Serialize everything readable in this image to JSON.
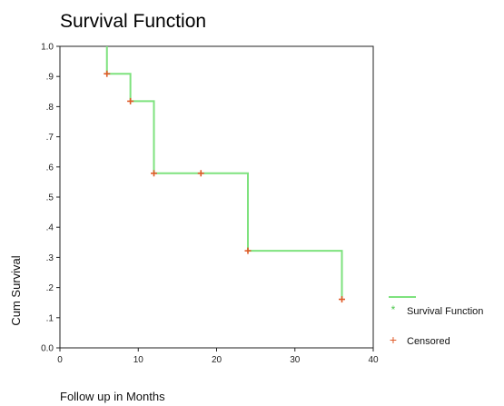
{
  "chart_data": {
    "type": "line",
    "title": "Survival Function",
    "xlabel": "Follow up in Months",
    "ylabel": "Cum Survival",
    "xlim": [
      0,
      40
    ],
    "ylim": [
      0.0,
      1.0
    ],
    "x_ticks": [
      "0",
      "10",
      "20",
      "30",
      "40"
    ],
    "y_ticks": [
      "0.0",
      ".1",
      ".2",
      ".3",
      ".4",
      ".5",
      ".6",
      ".7",
      ".8",
      ".9",
      "1.0"
    ],
    "grid": false,
    "legend_position": "right",
    "series": [
      {
        "name": "Survival Function",
        "kind": "step",
        "color": "#7ee27e",
        "points": [
          [
            6,
            1.0
          ],
          [
            6,
            0.909
          ],
          [
            9,
            0.909
          ],
          [
            9,
            0.818
          ],
          [
            12,
            0.818
          ],
          [
            12,
            0.579
          ],
          [
            24,
            0.579
          ],
          [
            24,
            0.322
          ],
          [
            36,
            0.322
          ],
          [
            36,
            0.161
          ]
        ]
      },
      {
        "name": "Censored",
        "kind": "marker",
        "marker": "+",
        "color": "#e05a28",
        "points": [
          [
            6,
            0.909
          ],
          [
            9,
            0.818
          ],
          [
            12,
            0.579
          ],
          [
            18,
            0.579
          ],
          [
            24,
            0.322
          ],
          [
            36,
            0.161
          ]
        ]
      }
    ]
  }
}
